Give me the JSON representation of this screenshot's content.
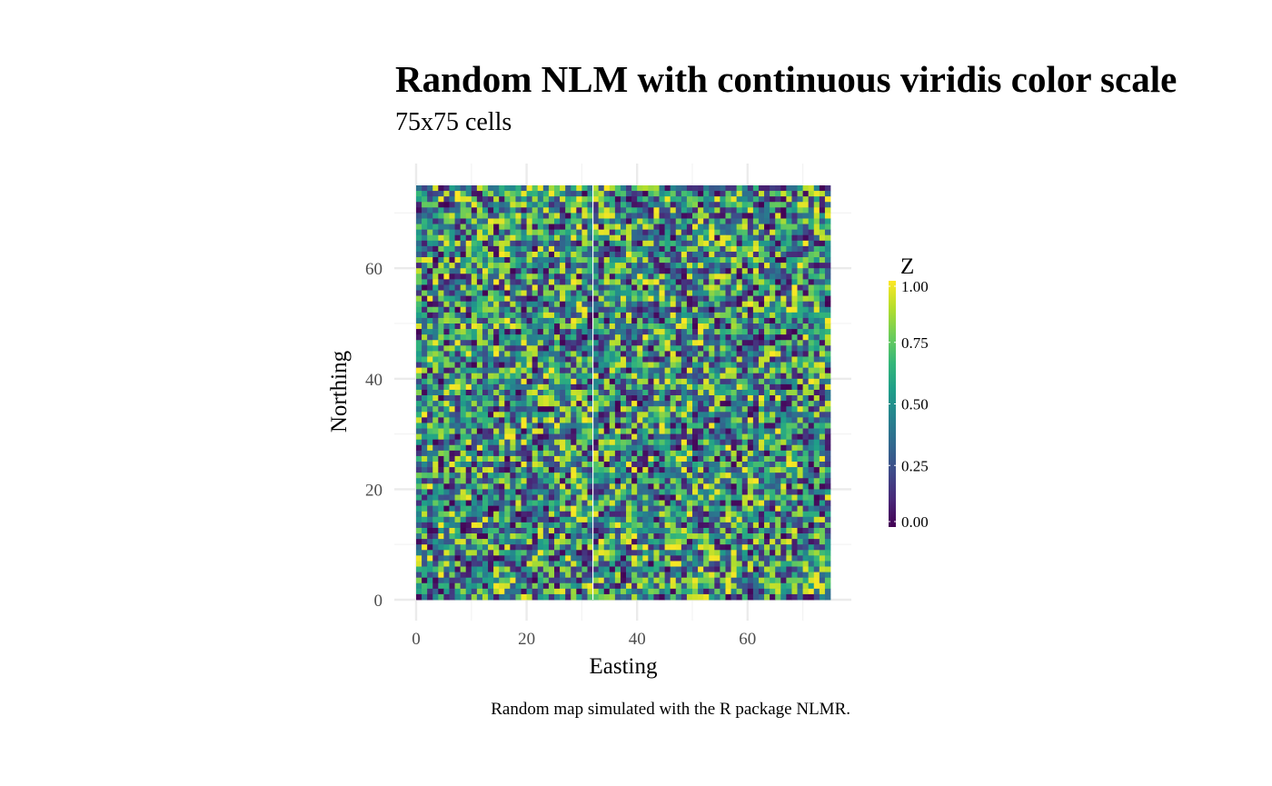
{
  "chart_data": {
    "type": "heatmap",
    "title": "Random NLM with continuous viridis color scale",
    "subtitle": "75x75 cells",
    "caption": "Random map simulated with the R package NLMR.",
    "xlabel": "Easting",
    "ylabel": "Northing",
    "xlim": [
      0,
      75
    ],
    "ylim": [
      0,
      75
    ],
    "x_ticks": [
      0,
      20,
      40,
      60
    ],
    "y_ticks": [
      0,
      20,
      40,
      60
    ],
    "x_tick_labels": [
      "0",
      "20",
      "40",
      "60"
    ],
    "y_tick_labels": [
      "0",
      "20",
      "40",
      "60"
    ],
    "grid": true,
    "ncol": 75,
    "nrow": 75,
    "value_range": [
      0,
      1
    ],
    "legend": {
      "title": "Z",
      "position": "right",
      "breaks": [
        0,
        0.25,
        0.5,
        0.75,
        1
      ],
      "labels": [
        "0.00",
        "0.25",
        "0.50",
        "0.75",
        "1.00"
      ]
    },
    "colormap": [
      "#440154",
      "#482878",
      "#3E4A89",
      "#31688E",
      "#26828E",
      "#1F9E89",
      "#35B779",
      "#6DCD59",
      "#B4DE2C",
      "#FDE725"
    ]
  }
}
